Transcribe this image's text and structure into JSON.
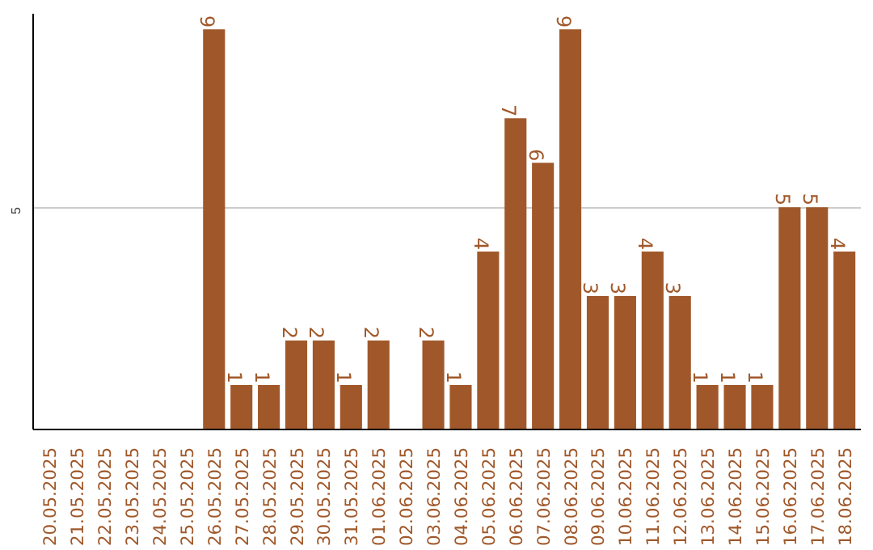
{
  "chart_data": {
    "type": "bar",
    "categories": [
      "20.05.2025",
      "21.05.2025",
      "22.05.2025",
      "23.05.2025",
      "24.05.2025",
      "25.05.2025",
      "26.05.2025",
      "27.05.2025",
      "28.05.2025",
      "29.05.2025",
      "30.05.2025",
      "31.05.2025",
      "01.06.2025",
      "02.06.2025",
      "03.06.2025",
      "04.06.2025",
      "05.06.2025",
      "06.06.2025",
      "07.06.2025",
      "08.06.2025",
      "09.06.2025",
      "10.06.2025",
      "11.06.2025",
      "12.06.2025",
      "13.06.2025",
      "14.06.2025",
      "15.06.2025",
      "16.06.2025",
      "17.06.2025",
      "18.06.2025"
    ],
    "values": [
      0,
      0,
      0,
      0,
      0,
      0,
      9,
      1,
      1,
      2,
      2,
      1,
      2,
      0,
      2,
      1,
      4,
      7,
      6,
      9,
      3,
      3,
      4,
      3,
      1,
      1,
      1,
      5,
      5,
      4
    ],
    "value_labels": [
      null,
      null,
      null,
      null,
      null,
      null,
      "9",
      "1",
      "1",
      "2",
      "2",
      "1",
      "2",
      null,
      "2",
      "1",
      "4",
      "7",
      "6",
      "9",
      "3",
      "3",
      "4",
      "3",
      "1",
      "1",
      "1",
      "5",
      "5",
      "4"
    ],
    "color": "#a0582a",
    "ylim": [
      0,
      9.35
    ],
    "yticks": [
      5
    ],
    "grid": "y"
  }
}
